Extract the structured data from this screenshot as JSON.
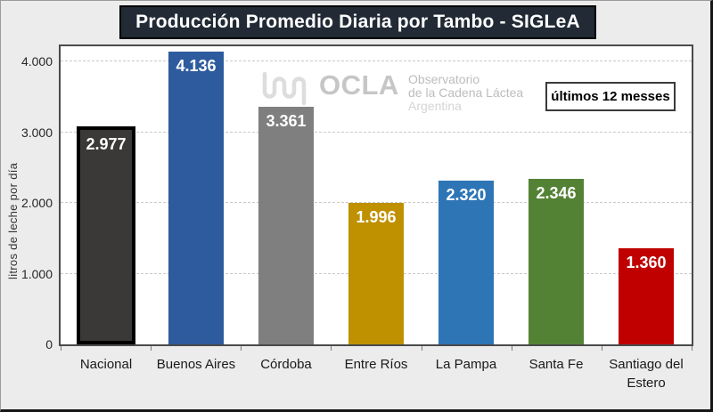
{
  "header": {
    "title": "Producción Promedio Diaria por Tambo - SIGLeA"
  },
  "watermark": {
    "brand": "OCLA",
    "line1": "Observatorio",
    "line2": "de la Cadena Láctea",
    "line3": "Argentina",
    "icon": "wave-icon",
    "brand_color": "#C6C6C6"
  },
  "chart_data": {
    "type": "bar",
    "title": "Producción Promedio Diaria por Tambo - SIGLeA",
    "xlabel": "",
    "ylabel": "litros de leche por día",
    "categories": [
      "Nacional",
      "Buenos Aires",
      "Córdoba",
      "Entre Ríos",
      "La Pampa",
      "Santa Fe",
      "Santiago del Estero"
    ],
    "values": [
      2977,
      4136,
      3361,
      1996,
      2320,
      2346,
      1360
    ],
    "value_labels": [
      "2.977",
      "4.136",
      "3.361",
      "1.996",
      "2.320",
      "2.346",
      "1.360"
    ],
    "bar_colors": [
      "#3B3838",
      "#2E5B9E",
      "#7F7F7F",
      "#BF9000",
      "#2E75B6",
      "#548235",
      "#C00000"
    ],
    "highlighted_bar": {
      "index": 0,
      "border_color": "#000000"
    },
    "yticks": [
      0,
      1000,
      2000,
      3000,
      4000
    ],
    "ytick_labels": [
      "0",
      "1.000",
      "2.000",
      "3.000",
      "4.000"
    ],
    "ylim": [
      0,
      4215
    ],
    "grid": "horizontal-dashed",
    "annotation": "últimos 12 messes"
  }
}
